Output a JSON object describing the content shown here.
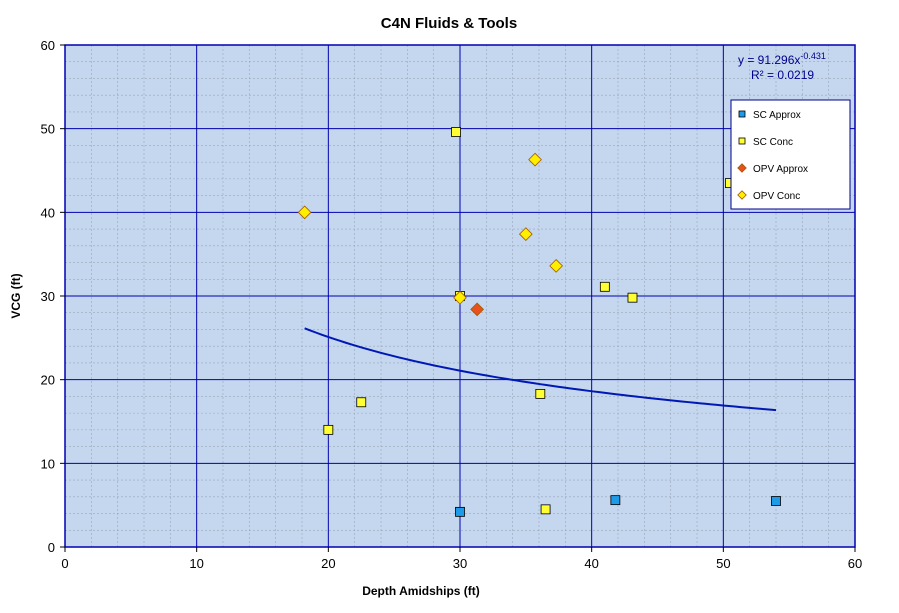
{
  "chart_data": {
    "type": "scatter",
    "title": "C4N Fluids & Tools",
    "xlabel": "Depth Amidships  (ft)",
    "ylabel": "VCG (ft)",
    "xlim": [
      0,
      60
    ],
    "ylim": [
      0,
      60
    ],
    "x_ticks": [
      "0",
      "10",
      "20",
      "30",
      "40",
      "50",
      "60"
    ],
    "y_ticks": [
      "0",
      "10",
      "20",
      "30",
      "40",
      "50",
      "60"
    ],
    "grid": true,
    "legend_position": "top-right",
    "background_color": "#c5d6ef",
    "series": [
      {
        "name": "SC Approx",
        "marker": "square",
        "color": "#1e9be8",
        "points": [
          [
            30.0,
            4.2
          ],
          [
            41.8,
            5.6
          ],
          [
            54.0,
            5.5
          ]
        ]
      },
      {
        "name": "SC Conc",
        "marker": "square",
        "color": "#ffff33",
        "points": [
          [
            20.0,
            14.0
          ],
          [
            22.5,
            17.3
          ],
          [
            29.7,
            49.6
          ],
          [
            30.0,
            30.0
          ],
          [
            36.1,
            18.3
          ],
          [
            36.5,
            4.5
          ],
          [
            41.0,
            31.1
          ],
          [
            43.1,
            29.8
          ],
          [
            50.5,
            43.5
          ]
        ]
      },
      {
        "name": "OPV Approx",
        "marker": "diamond",
        "color": "#e8501e",
        "points": [
          [
            31.3,
            28.4
          ]
        ]
      },
      {
        "name": "OPV Conc",
        "marker": "diamond",
        "color": "#ffee00",
        "points": [
          [
            18.2,
            40.0
          ],
          [
            30.0,
            29.8
          ],
          [
            35.0,
            37.4
          ],
          [
            35.7,
            46.3
          ],
          [
            37.3,
            33.6
          ]
        ]
      }
    ],
    "trendline": {
      "type": "power",
      "coefficient": 91.296,
      "exponent": -0.431,
      "x_range": [
        18.2,
        54.0
      ],
      "color": "#0018b4",
      "equation_label_main": "y = 91.296x",
      "equation_label_exp": "-0.431",
      "r2_label": "R² = 0.0219"
    }
  }
}
